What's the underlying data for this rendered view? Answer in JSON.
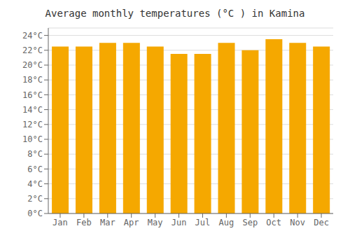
{
  "chart_data": {
    "type": "bar",
    "title": "Average monthly temperatures (°C ) in Kamina",
    "categories": [
      "Jan",
      "Feb",
      "Mar",
      "Apr",
      "May",
      "Jun",
      "Jul",
      "Aug",
      "Sep",
      "Oct",
      "Nov",
      "Dec"
    ],
    "values": [
      22.5,
      22.5,
      23.0,
      23.0,
      22.5,
      21.5,
      21.5,
      23.0,
      22.0,
      23.5,
      23.0,
      22.5
    ],
    "color": "#F5A800",
    "ylim": [
      0,
      25
    ],
    "yticks": [
      {
        "value": 0,
        "label": "0°C"
      },
      {
        "value": 2,
        "label": "2°C"
      },
      {
        "value": 4,
        "label": "4°C"
      },
      {
        "value": 6,
        "label": "6°C"
      },
      {
        "value": 8,
        "label": "8°C"
      },
      {
        "value": 10,
        "label": "10°C"
      },
      {
        "value": 12,
        "label": "12°C"
      },
      {
        "value": 14,
        "label": "14°C"
      },
      {
        "value": 16,
        "label": "16°C"
      },
      {
        "value": 18,
        "label": "18°C"
      },
      {
        "value": 20,
        "label": "20°C"
      },
      {
        "value": 22,
        "label": "22°C"
      },
      {
        "value": 24,
        "label": "24°C"
      }
    ],
    "grid": true
  }
}
